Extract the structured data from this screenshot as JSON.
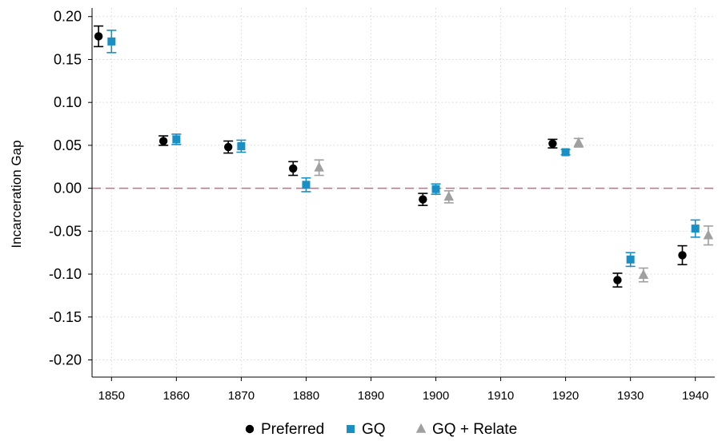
{
  "chart_data": {
    "type": "scatter",
    "ylabel": "Incarceration Gap",
    "xlabel": "",
    "xlim": [
      1847,
      1943
    ],
    "ylim": [
      -0.22,
      0.21
    ],
    "grid": true,
    "x_ticks": [
      1850,
      1860,
      1870,
      1880,
      1890,
      1900,
      1910,
      1920,
      1930,
      1940
    ],
    "y_ticks": [
      0.2,
      0.15,
      0.1,
      0.05,
      0.0,
      -0.05,
      -0.1,
      -0.15,
      -0.2
    ],
    "y_tick_labels": [
      "0.20",
      "0.15",
      "0.10",
      "0.05",
      "0.00",
      "-0.05",
      "-0.10",
      "-0.15",
      "-0.20"
    ],
    "reference_line": {
      "y": 0,
      "color": "#d0668a",
      "style": "dashed"
    },
    "legend_position": "bottom",
    "series": [
      {
        "name": "Preferred",
        "marker": "circle",
        "color": "#000000",
        "points": [
          {
            "x": 1848,
            "y": 0.177,
            "lo": 0.165,
            "hi": 0.189
          },
          {
            "x": 1858,
            "y": 0.055,
            "lo": 0.05,
            "hi": 0.061
          },
          {
            "x": 1868,
            "y": 0.048,
            "lo": 0.041,
            "hi": 0.055
          },
          {
            "x": 1878,
            "y": 0.023,
            "lo": 0.015,
            "hi": 0.031
          },
          {
            "x": 1898,
            "y": -0.013,
            "lo": -0.02,
            "hi": -0.006
          },
          {
            "x": 1918,
            "y": 0.052,
            "lo": 0.047,
            "hi": 0.057
          },
          {
            "x": 1928,
            "y": -0.107,
            "lo": -0.115,
            "hi": -0.099
          },
          {
            "x": 1938,
            "y": -0.078,
            "lo": -0.089,
            "hi": -0.067
          }
        ]
      },
      {
        "name": "GQ",
        "marker": "square",
        "color": "#1a8fc4",
        "points": [
          {
            "x": 1850,
            "y": 0.171,
            "lo": 0.158,
            "hi": 0.184
          },
          {
            "x": 1860,
            "y": 0.057,
            "lo": 0.051,
            "hi": 0.063
          },
          {
            "x": 1870,
            "y": 0.049,
            "lo": 0.042,
            "hi": 0.056
          },
          {
            "x": 1880,
            "y": 0.004,
            "lo": -0.004,
            "hi": 0.012
          },
          {
            "x": 1900,
            "y": -0.001,
            "lo": -0.007,
            "hi": 0.005
          },
          {
            "x": 1920,
            "y": 0.042,
            "lo": 0.039,
            "hi": 0.045
          },
          {
            "x": 1930,
            "y": -0.083,
            "lo": -0.091,
            "hi": -0.075
          },
          {
            "x": 1940,
            "y": -0.047,
            "lo": -0.057,
            "hi": -0.037
          }
        ]
      },
      {
        "name": "GQ + Relate",
        "marker": "triangle",
        "color": "#a0a0a0",
        "points": [
          {
            "x": 1882,
            "y": 0.024,
            "lo": 0.015,
            "hi": 0.033
          },
          {
            "x": 1902,
            "y": -0.01,
            "lo": -0.017,
            "hi": -0.003
          },
          {
            "x": 1922,
            "y": 0.053,
            "lo": 0.048,
            "hi": 0.058
          },
          {
            "x": 1932,
            "y": -0.101,
            "lo": -0.109,
            "hi": -0.093
          },
          {
            "x": 1942,
            "y": -0.055,
            "lo": -0.066,
            "hi": -0.044
          }
        ]
      }
    ]
  }
}
